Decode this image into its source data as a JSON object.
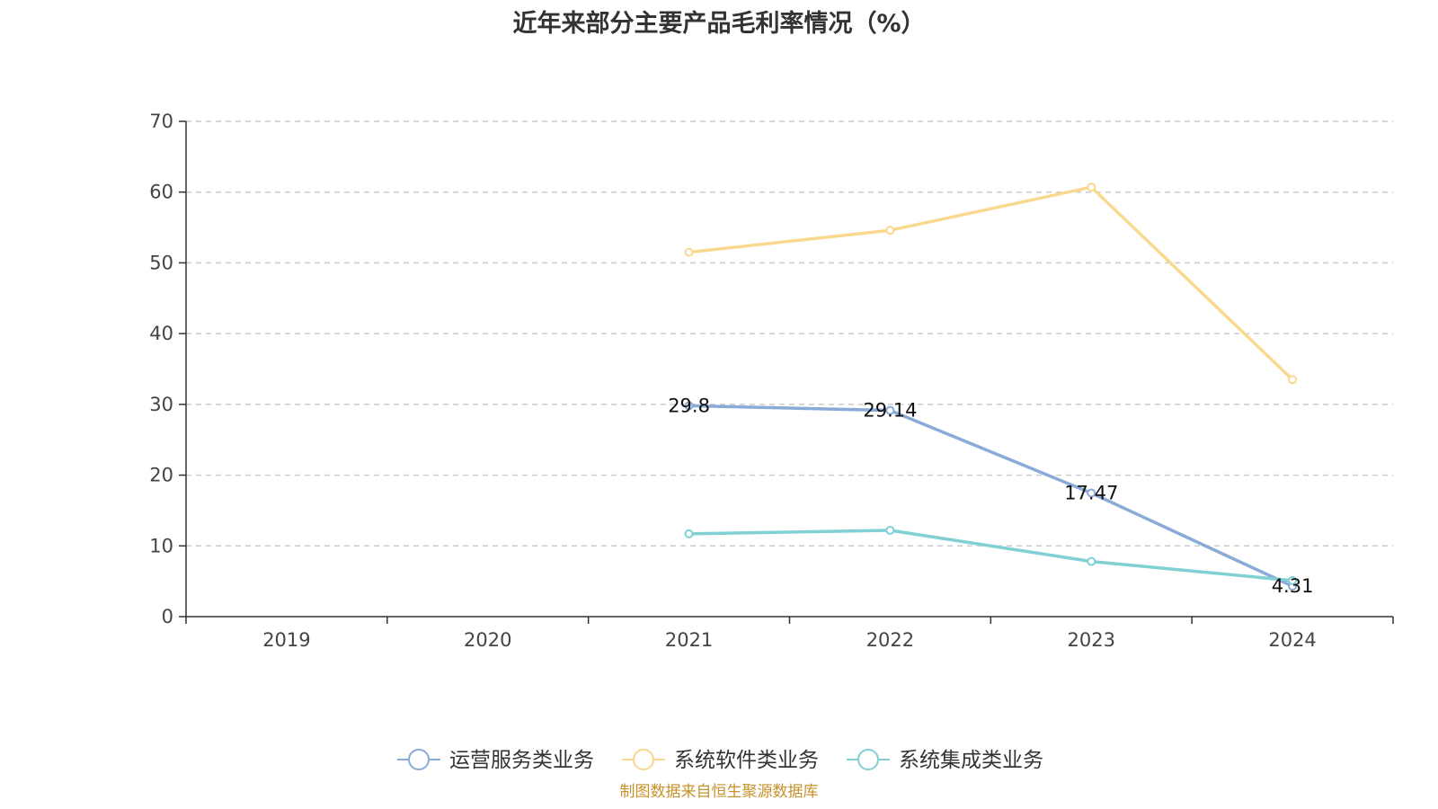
{
  "chart_data": {
    "type": "line",
    "title": "近年来部分主要产品毛利率情况（%）",
    "categories": [
      "2019",
      "2020",
      "2021",
      "2022",
      "2023",
      "2024"
    ],
    "ylim": [
      0,
      70
    ],
    "yticks": [
      0,
      10,
      20,
      30,
      40,
      50,
      60,
      70
    ],
    "grid": "horizontal dashed",
    "legend_position": "bottom",
    "series": [
      {
        "name": "运营服务类业务",
        "color": "#8AAAD8",
        "values": [
          null,
          null,
          29.8,
          29.14,
          17.47,
          4.31
        ],
        "labels": [
          "",
          "",
          "29.8",
          "29.14",
          "17.47",
          "4.31"
        ]
      },
      {
        "name": "系统软件类业务",
        "color": "#FAD98F",
        "values": [
          null,
          null,
          51.5,
          54.6,
          60.7,
          33.5
        ],
        "labels": [
          "",
          "",
          "",
          "",
          "",
          ""
        ]
      },
      {
        "name": "系统集成类业务",
        "color": "#80D0D4",
        "values": [
          null,
          null,
          11.7,
          12.2,
          7.8,
          5.1
        ],
        "labels": [
          "",
          "",
          "",
          "",
          "",
          ""
        ]
      }
    ]
  },
  "footer": "制图数据来自恒生聚源数据库"
}
